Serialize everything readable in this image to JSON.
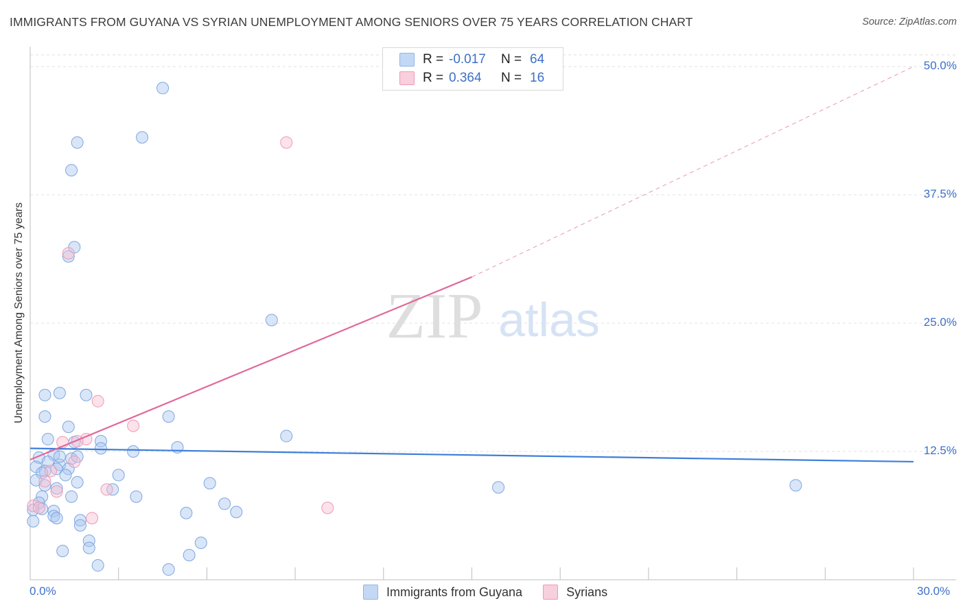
{
  "title": "IMMIGRANTS FROM GUYANA VS SYRIAN UNEMPLOYMENT AMONG SENIORS OVER 75 YEARS CORRELATION CHART",
  "source": "Source: ZipAtlas.com",
  "watermark": {
    "zip": "ZIP",
    "atlas": "atlas"
  },
  "legend": {
    "r_label": "R =",
    "n_label": "N =",
    "series": [
      {
        "name": "Immigrants from Guyana",
        "r": "-0.017",
        "n": "64",
        "color": "#8fb4e8",
        "fill": "#c3d8f5"
      },
      {
        "name": "Syrians",
        "r": "0.364",
        "n": "16",
        "color": "#ee9ab4",
        "fill": "#f8cfdc"
      }
    ]
  },
  "chart_data": {
    "type": "scatter",
    "title": "IMMIGRANTS FROM GUYANA VS SYRIAN UNEMPLOYMENT AMONG SENIORS OVER 75 YEARS CORRELATION CHART",
    "xlabel": "",
    "ylabel": "Unemployment Among Seniors over 75 years",
    "xlim": [
      0,
      30
    ],
    "ylim": [
      0,
      50
    ],
    "x_tick_labels": [
      "0.0%",
      "30.0%"
    ],
    "y_tick_labels": [
      "12.5%",
      "25.0%",
      "37.5%",
      "50.0%"
    ],
    "y_ticks": [
      12.5,
      25,
      37.5,
      50
    ],
    "grid": true,
    "series": [
      {
        "name": "Immigrants from Guyana",
        "color": "#3c7dd9",
        "trend": {
          "x0": 0,
          "y0": 12.8,
          "x1": 30,
          "y1": 11.5
        },
        "points": [
          [
            4.5,
            47.9
          ],
          [
            3.8,
            43.1
          ],
          [
            1.6,
            42.6
          ],
          [
            1.4,
            39.9
          ],
          [
            1.5,
            32.4
          ],
          [
            1.3,
            31.5
          ],
          [
            8.2,
            25.3
          ],
          [
            0.5,
            18.0
          ],
          [
            1.0,
            18.2
          ],
          [
            1.9,
            18.0
          ],
          [
            0.5,
            15.9
          ],
          [
            4.7,
            15.9
          ],
          [
            1.3,
            14.9
          ],
          [
            8.7,
            14.0
          ],
          [
            0.6,
            13.7
          ],
          [
            1.5,
            13.4
          ],
          [
            2.4,
            13.5
          ],
          [
            5.0,
            12.9
          ],
          [
            3.5,
            12.5
          ],
          [
            0.8,
            12.2
          ],
          [
            0.3,
            11.9
          ],
          [
            1.4,
            11.8
          ],
          [
            0.6,
            11.5
          ],
          [
            1.0,
            11.2
          ],
          [
            0.2,
            11.0
          ],
          [
            0.5,
            10.6
          ],
          [
            0.9,
            10.8
          ],
          [
            1.3,
            10.8
          ],
          [
            0.4,
            10.4
          ],
          [
            1.2,
            10.2
          ],
          [
            3.0,
            10.2
          ],
          [
            0.2,
            9.7
          ],
          [
            1.6,
            9.5
          ],
          [
            6.1,
            9.4
          ],
          [
            0.5,
            9.2
          ],
          [
            0.9,
            8.9
          ],
          [
            2.8,
            8.8
          ],
          [
            26.0,
            9.2
          ],
          [
            15.9,
            9.0
          ],
          [
            0.4,
            8.1
          ],
          [
            1.4,
            8.1
          ],
          [
            3.6,
            8.1
          ],
          [
            0.3,
            7.5
          ],
          [
            6.6,
            7.4
          ],
          [
            0.8,
            6.7
          ],
          [
            5.3,
            6.5
          ],
          [
            7.0,
            6.6
          ],
          [
            0.8,
            6.2
          ],
          [
            0.9,
            6.0
          ],
          [
            1.7,
            5.8
          ],
          [
            1.7,
            5.3
          ],
          [
            0.1,
            5.7
          ],
          [
            2.0,
            3.8
          ],
          [
            5.8,
            3.6
          ],
          [
            2.0,
            3.1
          ],
          [
            1.1,
            2.8
          ],
          [
            5.4,
            2.4
          ],
          [
            2.3,
            1.4
          ],
          [
            4.7,
            1.0
          ],
          [
            0.1,
            6.8
          ],
          [
            0.4,
            6.9
          ],
          [
            1.0,
            12.0
          ],
          [
            2.4,
            12.8
          ],
          [
            1.6,
            12.0
          ]
        ]
      },
      {
        "name": "Syrians",
        "color": "#e0689a",
        "trend": {
          "x0": 0,
          "y0": 11.7,
          "x1": 15,
          "y1": 29.5,
          "dash_to_x": 30,
          "dash_to_y": 50
        },
        "points": [
          [
            8.7,
            42.6
          ],
          [
            1.3,
            31.8
          ],
          [
            2.3,
            17.4
          ],
          [
            3.5,
            15.0
          ],
          [
            1.9,
            13.7
          ],
          [
            1.1,
            13.4
          ],
          [
            1.6,
            13.5
          ],
          [
            1.5,
            11.5
          ],
          [
            0.7,
            10.6
          ],
          [
            0.5,
            9.6
          ],
          [
            0.9,
            8.6
          ],
          [
            2.6,
            8.8
          ],
          [
            10.1,
            7.0
          ],
          [
            2.1,
            6.0
          ],
          [
            0.1,
            7.2
          ],
          [
            0.3,
            7.0
          ]
        ]
      }
    ]
  }
}
